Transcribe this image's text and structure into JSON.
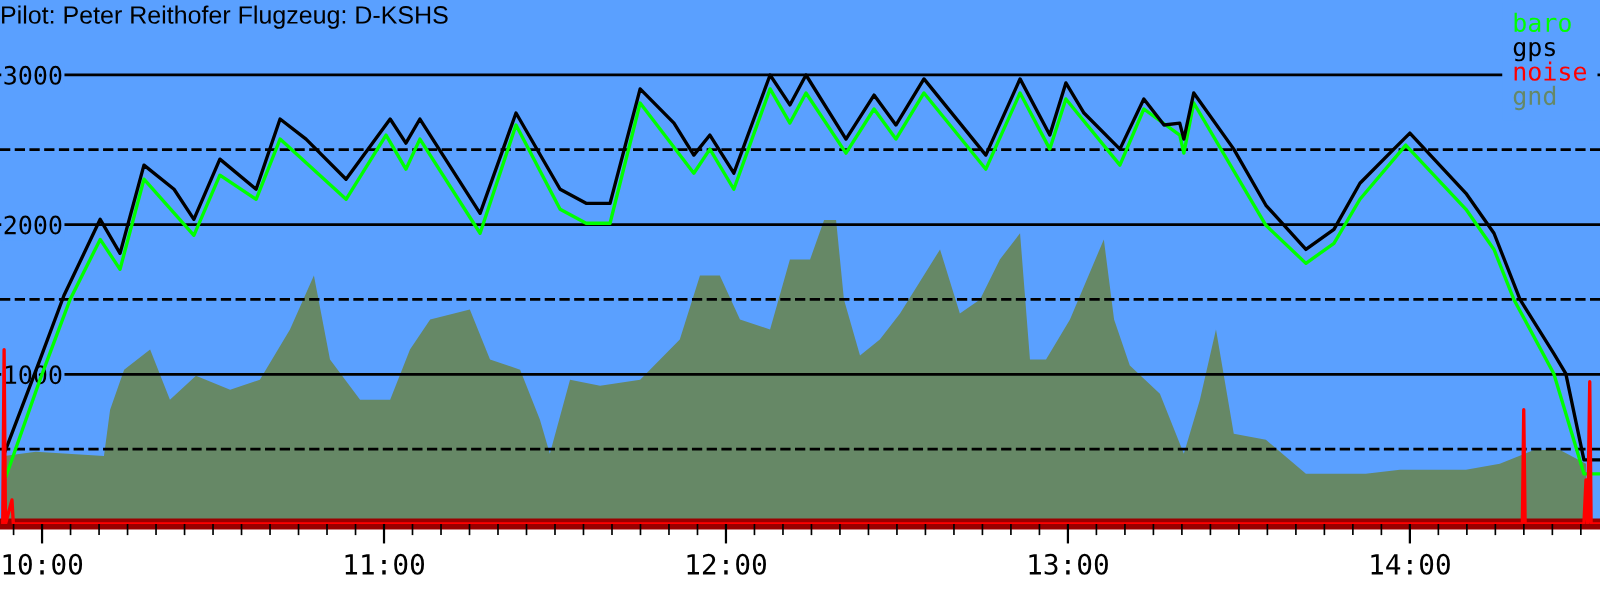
{
  "chart_data": {
    "type": "line",
    "title": "Pilot: Peter Reithofer Flugzeug: D-KSHS",
    "xlim": [
      9.877,
      14.556
    ],
    "ylim": [
      0,
      3500
    ],
    "xticks": [
      {
        "value": 10,
        "label": "10:00"
      },
      {
        "value": 11,
        "label": "11:00"
      },
      {
        "value": 12,
        "label": "12:00"
      },
      {
        "value": 13,
        "label": "13:00"
      },
      {
        "value": 14,
        "label": "14:00"
      },
      {
        "value": 9.9167,
        "label": null
      },
      {
        "value": 10.0833,
        "label": null
      },
      {
        "value": 10.1667,
        "label": null
      },
      {
        "value": 10.25,
        "label": null
      },
      {
        "value": 10.3333,
        "label": null
      },
      {
        "value": 10.4167,
        "label": null
      },
      {
        "value": 10.5,
        "label": null
      },
      {
        "value": 10.5833,
        "label": null
      },
      {
        "value": 10.6667,
        "label": null
      },
      {
        "value": 10.75,
        "label": null
      },
      {
        "value": 10.8333,
        "label": null
      },
      {
        "value": 10.9167,
        "label": null
      },
      {
        "value": 11.0833,
        "label": null
      },
      {
        "value": 11.1667,
        "label": null
      },
      {
        "value": 11.25,
        "label": null
      },
      {
        "value": 11.3333,
        "label": null
      },
      {
        "value": 11.4167,
        "label": null
      },
      {
        "value": 11.5,
        "label": null
      },
      {
        "value": 11.5833,
        "label": null
      },
      {
        "value": 11.6667,
        "label": null
      },
      {
        "value": 11.75,
        "label": null
      },
      {
        "value": 11.8333,
        "label": null
      },
      {
        "value": 11.9167,
        "label": null
      },
      {
        "value": 12.0833,
        "label": null
      },
      {
        "value": 12.1667,
        "label": null
      },
      {
        "value": 12.25,
        "label": null
      },
      {
        "value": 12.3333,
        "label": null
      },
      {
        "value": 12.4167,
        "label": null
      },
      {
        "value": 12.5,
        "label": null
      },
      {
        "value": 12.5833,
        "label": null
      },
      {
        "value": 12.6667,
        "label": null
      },
      {
        "value": 12.75,
        "label": null
      },
      {
        "value": 12.8333,
        "label": null
      },
      {
        "value": 12.9167,
        "label": null
      },
      {
        "value": 13.0833,
        "label": null
      },
      {
        "value": 13.1667,
        "label": null
      },
      {
        "value": 13.25,
        "label": null
      },
      {
        "value": 13.3333,
        "label": null
      },
      {
        "value": 13.4167,
        "label": null
      },
      {
        "value": 13.5,
        "label": null
      },
      {
        "value": 13.5833,
        "label": null
      },
      {
        "value": 13.6667,
        "label": null
      },
      {
        "value": 13.75,
        "label": null
      },
      {
        "value": 13.8333,
        "label": null
      },
      {
        "value": 13.9167,
        "label": null
      },
      {
        "value": 14.0833,
        "label": null
      },
      {
        "value": 14.1667,
        "label": null
      },
      {
        "value": 14.25,
        "label": null
      },
      {
        "value": 14.3333,
        "label": null
      },
      {
        "value": 14.4167,
        "label": null
      },
      {
        "value": 14.5,
        "label": null
      }
    ],
    "yticks": [
      {
        "value": 500,
        "label": null
      },
      {
        "value": 1000,
        "label": "1000"
      },
      {
        "value": 1500,
        "label": null
      },
      {
        "value": 2000,
        "label": "2000"
      },
      {
        "value": 2500,
        "label": null
      },
      {
        "value": 3000,
        "label": "3000"
      }
    ],
    "grid": "y",
    "legend": "top right",
    "series": [
      {
        "name": "baro",
        "color": "#00ff00",
        "x": [
          9.895,
          9.994,
          10.082,
          10.17,
          10.228,
          10.298,
          10.444,
          10.52,
          10.626,
          10.696,
          10.889,
          11.006,
          11.064,
          11.105,
          11.281,
          11.386,
          11.515,
          11.591,
          11.661,
          11.749,
          11.906,
          11.953,
          12.023,
          12.129,
          12.187,
          12.234,
          12.351,
          12.433,
          12.497,
          12.579,
          12.76,
          12.86,
          12.947,
          12.994,
          13.152,
          13.222,
          13.327,
          13.339,
          13.368,
          13.579,
          13.696,
          13.778,
          13.854,
          13.988,
          14.164,
          14.246,
          14.304,
          14.421,
          14.497,
          14.509,
          14.556
        ],
        "values": [
          321,
          964,
          1500,
          1901,
          1701,
          2303,
          1928,
          2330,
          2169,
          2571,
          2169,
          2598,
          2370,
          2571,
          1942,
          2665,
          2102,
          2009,
          2009,
          2812,
          2343,
          2504,
          2236,
          2906,
          2678,
          2879,
          2477,
          2772,
          2571,
          2879,
          2370,
          2879,
          2504,
          2839,
          2397,
          2772,
          2598,
          2477,
          2812,
          1995,
          1741,
          1875,
          2169,
          2531,
          2102,
          1834,
          1500,
          1004,
          428,
          335,
          335
        ]
      },
      {
        "name": "gps",
        "color": "#000000",
        "x": [
          9.889,
          9.994,
          10.064,
          10.17,
          10.228,
          10.298,
          10.386,
          10.444,
          10.52,
          10.626,
          10.696,
          10.772,
          10.889,
          11.018,
          11.064,
          11.105,
          11.281,
          11.386,
          11.515,
          11.591,
          11.661,
          11.749,
          11.848,
          11.906,
          11.953,
          12.023,
          12.129,
          12.187,
          12.234,
          12.351,
          12.433,
          12.497,
          12.579,
          12.76,
          12.86,
          12.947,
          12.994,
          13.047,
          13.152,
          13.222,
          13.281,
          13.327,
          13.339,
          13.368,
          13.485,
          13.579,
          13.696,
          13.778,
          13.854,
          13.953,
          14.0,
          14.164,
          14.246,
          14.322,
          14.421,
          14.456,
          14.509,
          14.556
        ],
        "values": [
          469,
          1098,
          1526,
          2035,
          1808,
          2397,
          2236,
          2035,
          2437,
          2236,
          2705,
          2571,
          2303,
          2705,
          2544,
          2705,
          2075,
          2745,
          2236,
          2142,
          2142,
          2906,
          2678,
          2464,
          2598,
          2343,
          2999,
          2799,
          2999,
          2571,
          2865,
          2665,
          2973,
          2464,
          2973,
          2598,
          2946,
          2745,
          2504,
          2839,
          2665,
          2678,
          2571,
          2879,
          2504,
          2129,
          1834,
          1968,
          2276,
          2504,
          2611,
          2209,
          1942,
          1500,
          1138,
          1004,
          428,
          428
        ]
      },
      {
        "name": "noise",
        "color": "#ff0000",
        "x": [
          9.885,
          9.889,
          9.893,
          9.912,
          9.916,
          14.329,
          14.333,
          14.337,
          14.509,
          14.515,
          14.52,
          14.526,
          14.53,
          14.556
        ],
        "values": [
          0,
          1165,
          0,
          161,
          0,
          0,
          763,
          0,
          0,
          295,
          0,
          950,
          0,
          0
        ]
      },
      {
        "name": "gnd",
        "type": "area",
        "color": "#668866",
        "x": [
          9.889,
          9.982,
          10.181,
          10.199,
          10.24,
          10.316,
          10.374,
          10.45,
          10.55,
          10.637,
          10.725,
          10.795,
          10.842,
          10.93,
          11.018,
          11.076,
          11.135,
          11.251,
          11.31,
          11.398,
          11.456,
          11.485,
          11.544,
          11.632,
          11.749,
          11.865,
          11.924,
          11.982,
          12.041,
          12.129,
          12.187,
          12.246,
          12.287,
          12.322,
          12.345,
          12.392,
          12.45,
          12.509,
          12.626,
          12.684,
          12.743,
          12.801,
          12.86,
          12.889,
          12.936,
          13.006,
          13.105,
          13.135,
          13.181,
          13.269,
          13.339,
          13.386,
          13.433,
          13.485,
          13.579,
          13.696,
          13.871,
          13.971,
          14.164,
          14.263,
          14.363,
          14.439,
          14.515
        ],
        "values": [
          455,
          482,
          455,
          763,
          1031,
          1165,
          830,
          991,
          897,
          964,
          1299,
          1660,
          1098,
          830,
          830,
          1165,
          1366,
          1433,
          1098,
          1031,
          696,
          469,
          964,
          924,
          964,
          1232,
          1660,
          1660,
          1366,
          1299,
          1767,
          1767,
          2030,
          2030,
          1500,
          1125,
          1232,
          1406,
          1834,
          1406,
          1500,
          1767,
          1942,
          1098,
          1098,
          1366,
          1901,
          1366,
          1058,
          870,
          469,
          830,
          1299,
          603,
          562,
          335,
          335,
          362,
          362,
          402,
          495,
          495,
          402
        ]
      }
    ]
  }
}
